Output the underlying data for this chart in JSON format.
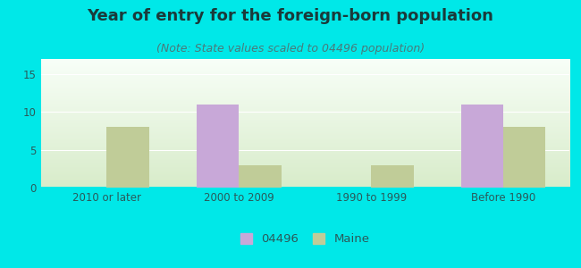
{
  "title": "Year of entry for the foreign-born population",
  "subtitle": "(Note: State values scaled to 04496 population)",
  "categories": [
    "2010 or later",
    "2000 to 2009",
    "1990 to 1999",
    "Before 1990"
  ],
  "series_04496": [
    0,
    11,
    0,
    11
  ],
  "series_maine": [
    8,
    3,
    3,
    8
  ],
  "color_04496": "#c8a8d8",
  "color_maine": "#c0cc98",
  "background_color": "#00e8e8",
  "ylim": [
    0,
    17
  ],
  "yticks": [
    0,
    5,
    10,
    15
  ],
  "bar_width": 0.32,
  "legend_04496": "04496",
  "legend_maine": "Maine",
  "title_fontsize": 13,
  "subtitle_fontsize": 9,
  "tick_fontsize": 8.5,
  "title_color": "#1a3a3a",
  "subtitle_color": "#4a7a7a",
  "tick_color": "#2a5a5a"
}
